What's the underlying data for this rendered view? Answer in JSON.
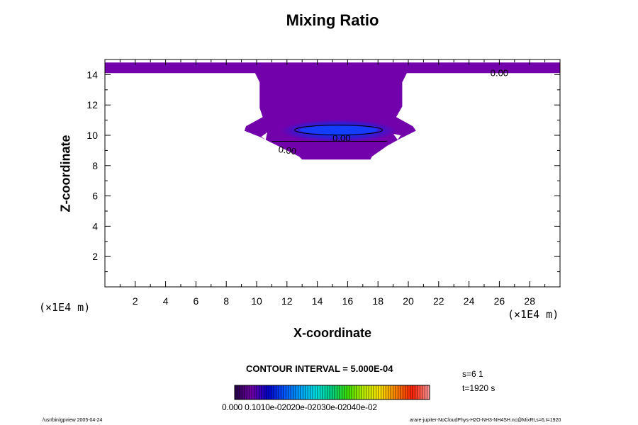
{
  "chart_data": {
    "type": "contour",
    "title": "Mixing Ratio",
    "xlabel": "X-coordinate",
    "ylabel": "Z-coordinate",
    "x_unit": "(×1E4 m)",
    "y_unit": "(×1E4 m)",
    "xlim": [
      0,
      30
    ],
    "ylim": [
      0,
      15
    ],
    "x_ticks": [
      2,
      4,
      6,
      8,
      10,
      12,
      14,
      16,
      18,
      20,
      22,
      24,
      26,
      28
    ],
    "y_ticks": [
      2,
      4,
      6,
      8,
      10,
      12,
      14
    ],
    "x_tick_labels": [
      "2",
      "4",
      "6",
      "8",
      "10",
      "12",
      "14",
      "16",
      "18",
      "20",
      "22",
      "24",
      "26",
      "28"
    ],
    "y_tick_labels": [
      "2",
      "4",
      "6",
      "8",
      "10",
      "12",
      "14"
    ],
    "contour_interval": "CONTOUR INTERVAL = 5.000E-04",
    "contour_labels": [
      {
        "text": "0.00",
        "x": 26.0,
        "y": 13.9
      },
      {
        "text": "0.00",
        "x": 15.6,
        "y": 9.6
      },
      {
        "text": "0.00",
        "x": 12.0,
        "y": 8.8
      }
    ],
    "filled_region": {
      "color": "#7200ab",
      "top_band_z": [
        14.1,
        14.8
      ],
      "column_x": [
        10.2,
        19.6
      ],
      "column_z_top": 14.1,
      "wings_x": [
        9.2,
        20.5
      ],
      "wings_z": [
        9.8,
        10.6
      ],
      "bottom_x": [
        13.0,
        17.5
      ],
      "bottom_z": 8.4,
      "core_center": [
        15.4,
        10.3
      ],
      "core_max_color": "#0044ff"
    },
    "colorbar": {
      "label_text": "0.000 0.1010e-02020e-02030e-02040e-02",
      "colors": [
        "#2a004e",
        "#7200ab",
        "#0000c8",
        "#0055ff",
        "#00a0ff",
        "#00e0e0",
        "#00d080",
        "#40e000",
        "#c0f000",
        "#ffe000",
        "#ff8000",
        "#ff2000",
        "#ff9090"
      ]
    },
    "info": {
      "s": "s=6 1",
      "t": "t=1920 s"
    },
    "footer": {
      "left": "/usr/bin/gpview 2005-04-24",
      "right": "arare-jupiter-NoCloudPhys-H2O-NH3-NH4SH.nc@MixRt,s=6,t=1920"
    }
  }
}
